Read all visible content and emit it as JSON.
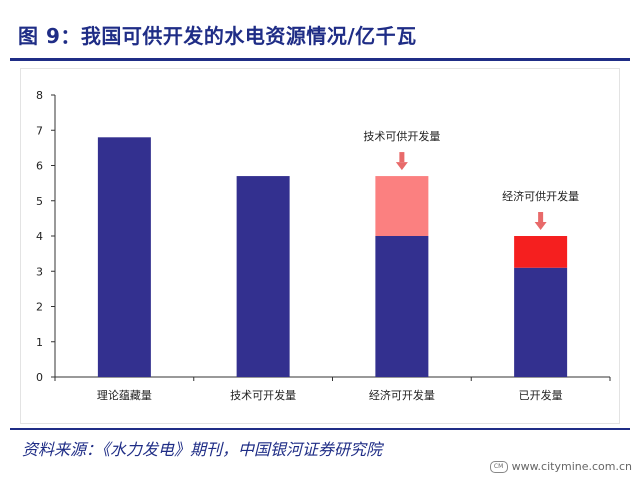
{
  "header": {
    "title": "图 9：我国可供开发的水电资源情况/亿千瓦"
  },
  "footer": {
    "source": "资料来源：《水力发电》期刊，中国银河证券研究院",
    "watermark": "www.citymine.com.cn"
  },
  "colors": {
    "bar_base": "#33308f",
    "tech_extra": "#fb8080",
    "econ_extra": "#f51f1f",
    "arrow": "#e86a6a",
    "title": "#1f2d86"
  },
  "chart_data": {
    "type": "bar",
    "stacked": true,
    "categories": [
      "理论蕴藏量",
      "技术可开发量",
      "经济可开发量",
      "已开发量"
    ],
    "values": [
      6.8,
      5.7,
      5.7,
      4.0
    ],
    "segments": [
      {
        "category": "理论蕴藏量",
        "base": 6.8,
        "extra": 0
      },
      {
        "category": "技术可开发量",
        "base": 5.7,
        "extra": 0
      },
      {
        "category": "经济可开发量",
        "base": 4.0,
        "extra": 1.7,
        "extra_color": "#fb8080"
      },
      {
        "category": "已开发量",
        "base": 3.1,
        "extra": 0.9,
        "extra_color": "#f51f1f"
      }
    ],
    "annotations": [
      {
        "text": "技术可供开发量",
        "category": "经济可开发量"
      },
      {
        "text": "经济可供开发量",
        "category": "已开发量"
      }
    ],
    "yticks": [
      "0",
      "1",
      "2",
      "3",
      "4",
      "5",
      "6",
      "7",
      "8"
    ],
    "ylim": [
      0,
      8
    ],
    "title": "",
    "xlabel": "",
    "ylabel": "",
    "grid": false
  }
}
